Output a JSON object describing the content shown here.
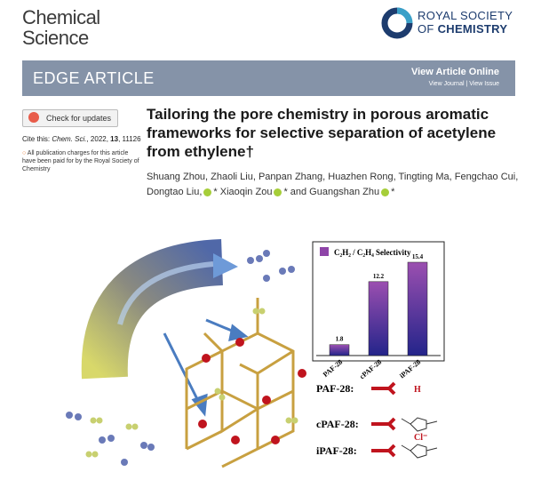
{
  "journal": {
    "name_lines": [
      "Chemical",
      "Science"
    ]
  },
  "publisher": {
    "line1": "ROYAL SOCIETY",
    "line2": [
      "OF",
      "CHEMISTRY"
    ]
  },
  "banner": {
    "article_type": "EDGE ARTICLE",
    "view_online": "View Article Online",
    "view_journal": "View Journal",
    "separator": "|",
    "view_issue": "View Issue"
  },
  "sidebar": {
    "check_updates": "Check for updates",
    "cite": [
      "Cite this: ",
      "Chem. Sci.",
      ", 2022, ",
      "13",
      ", 11126"
    ],
    "open_access": "All publication charges for this article have been paid for by the Royal Society of Chemistry"
  },
  "article": {
    "title_lines": [
      "Tailoring the pore chemistry in porous aromatic",
      "frameworks for selective separation of acetylene",
      "from ethylene†"
    ],
    "authors": [
      "Shuang Zhou, Zhaoli Liu, Panpan Zhang, Huazhen Rong, Tingting Ma, Fengchao Cui,",
      "Dongtao Liu,",
      "* Xiaoqin Zou",
      "* and Guangshan Zhu",
      "*"
    ]
  },
  "graphical_abstract": {
    "chart": {
      "type": "bar",
      "title": "C₂H₂ / C₂H₄ Selectivity",
      "categories": [
        "PAF-28",
        "cPAF-28",
        "iPAF-28"
      ],
      "values": [
        1.8,
        12.2,
        15.4
      ],
      "color": "#8e44a8"
    },
    "structures": [
      {
        "label": "PAF-28:",
        "marker": "H"
      },
      {
        "label": "cPAF-28:"
      },
      {
        "label": "iPAF-28:",
        "marker": "Cl⁻"
      }
    ]
  }
}
